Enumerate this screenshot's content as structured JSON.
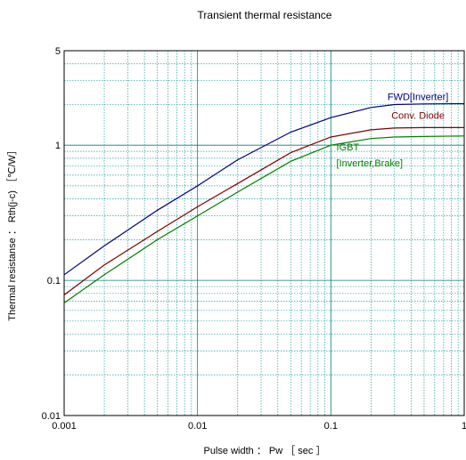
{
  "chart_data": {
    "type": "line",
    "title": "Transient thermal resistance",
    "xlabel": "Pulse width ： Pw ［ sec ］",
    "ylabel": "Thermal resistanse ： Rth(j-c) ［℃/W］",
    "x_scale": "log",
    "y_scale": "log",
    "xlim": [
      0.001,
      1
    ],
    "ylim": [
      0.01,
      5
    ],
    "grid": true,
    "x_ticks": [
      {
        "value": 0.001,
        "label": "0.001"
      },
      {
        "value": 0.01,
        "label": "0.01"
      },
      {
        "value": 0.1,
        "label": "0.1"
      },
      {
        "value": 1,
        "label": "1"
      }
    ],
    "y_ticks": [
      {
        "value": 0.01,
        "label": "0.01"
      },
      {
        "value": 0.1,
        "label": "0.1"
      },
      {
        "value": 1,
        "label": "1"
      },
      {
        "value": 5,
        "label": "5"
      }
    ],
    "series": [
      {
        "name": "FWD[Inverter]",
        "color": "#000080",
        "x": [
          0.001,
          0.002,
          0.005,
          0.01,
          0.02,
          0.05,
          0.1,
          0.2,
          0.3,
          0.5,
          1
        ],
        "y": [
          0.11,
          0.18,
          0.33,
          0.5,
          0.78,
          1.25,
          1.6,
          1.9,
          2.0,
          2.02,
          2.03
        ]
      },
      {
        "name": "Conv. Diode",
        "color": "#800000",
        "x": [
          0.001,
          0.002,
          0.005,
          0.01,
          0.02,
          0.05,
          0.1,
          0.2,
          0.3,
          0.5,
          1
        ],
        "y": [
          0.078,
          0.13,
          0.23,
          0.35,
          0.52,
          0.88,
          1.15,
          1.3,
          1.34,
          1.35,
          1.35
        ]
      },
      {
        "name": "IGBT [Inverter,Brake]",
        "label_lines": [
          "IGBT",
          "[Inverter,Brake]"
        ],
        "color": "#008000",
        "x": [
          0.001,
          0.002,
          0.005,
          0.01,
          0.02,
          0.05,
          0.1,
          0.2,
          0.3,
          0.5,
          1
        ],
        "y": [
          0.068,
          0.11,
          0.2,
          0.3,
          0.45,
          0.76,
          1.0,
          1.12,
          1.15,
          1.16,
          1.17
        ]
      }
    ]
  }
}
